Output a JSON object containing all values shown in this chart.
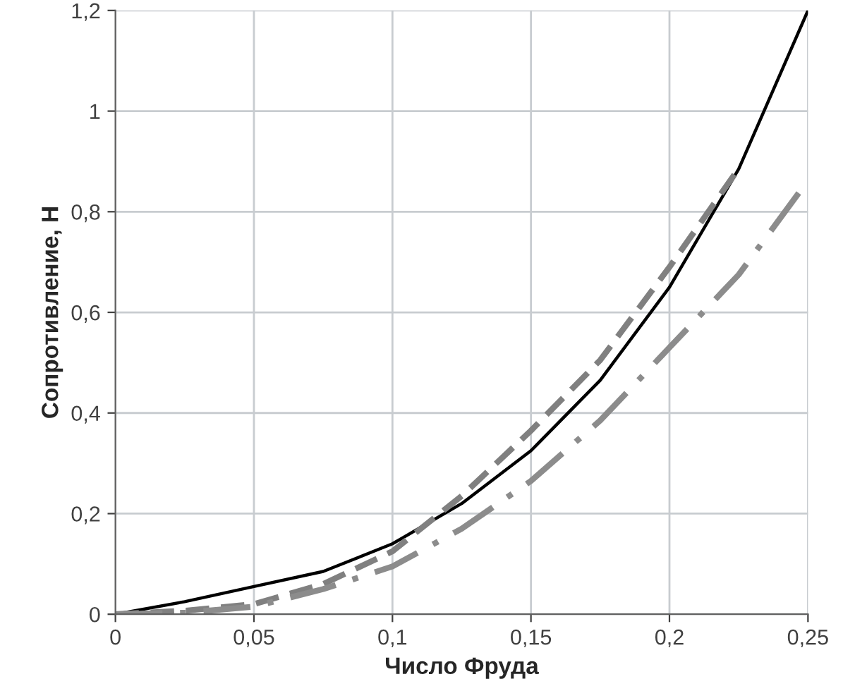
{
  "chart_data": {
    "type": "line",
    "xlabel": "Число Фруда",
    "ylabel": "Сопротивление, Н",
    "xlim": [
      0,
      0.25
    ],
    "ylim": [
      0,
      1.2
    ],
    "xticks": [
      0,
      {
        "value": 0.05,
        "label": "0,05"
      },
      {
        "value": 0.1,
        "label": "0,1"
      },
      {
        "value": 0.15,
        "label": "0,15"
      },
      {
        "value": 0.2,
        "label": "0,2"
      },
      {
        "value": 0.25,
        "label": "0,25"
      }
    ],
    "yticks": [
      0,
      {
        "value": 0.2,
        "label": "0,2"
      },
      {
        "value": 0.4,
        "label": "0,4"
      },
      {
        "value": 0.6,
        "label": "0,6"
      },
      {
        "value": 0.8,
        "label": "0,8"
      },
      {
        "value": 1,
        "label": "1"
      },
      {
        "value": 1.2,
        "label": "1,2"
      }
    ],
    "grid": true,
    "marker": "none",
    "series": [
      {
        "color": "#000000",
        "line_style": "solid",
        "x": [
          0,
          0.025,
          0.05,
          0.075,
          0.1,
          0.125,
          0.15,
          0.175,
          0.2,
          0.225,
          0.25
        ],
        "values": [
          0,
          0.025,
          0.055,
          0.085,
          0.14,
          0.22,
          0.325,
          0.465,
          0.65,
          0.885,
          1.2
        ]
      },
      {
        "color": "#808080",
        "line_style": "dashed",
        "x": [
          0,
          0.025,
          0.05,
          0.075,
          0.1,
          0.125,
          0.15,
          0.175,
          0.2,
          0.2236
        ],
        "values": [
          0,
          0.007,
          0.02,
          0.06,
          0.125,
          0.235,
          0.365,
          0.505,
          0.69,
          0.875
        ]
      },
      {
        "color": "#8c8c8c",
        "line_style": "dashdot",
        "x": [
          0,
          0.025,
          0.05,
          0.075,
          0.1,
          0.125,
          0.15,
          0.175,
          0.2,
          0.225,
          0.2477
        ],
        "values": [
          0,
          0.003,
          0.015,
          0.05,
          0.095,
          0.17,
          0.265,
          0.385,
          0.53,
          0.675,
          0.845
        ]
      }
    ]
  }
}
